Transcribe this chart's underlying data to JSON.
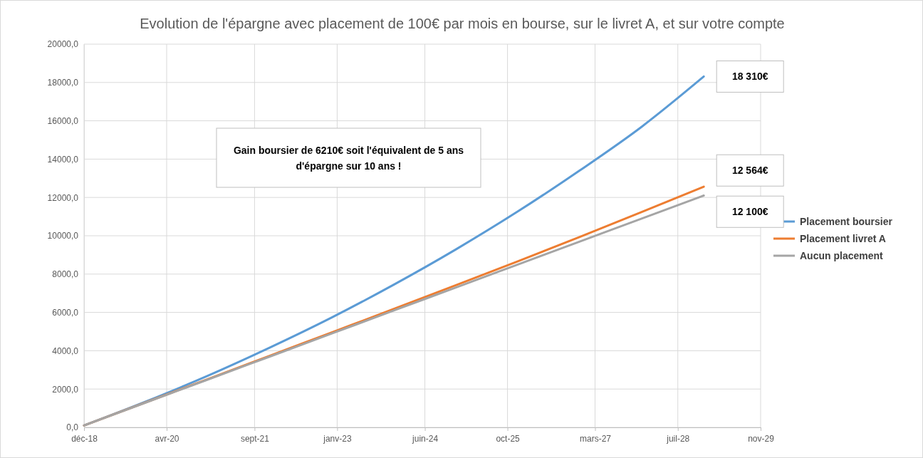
{
  "chart_data": {
    "type": "line",
    "title": "Evolution de l'épargne avec placement de 100€ par mois en bourse, sur le livret A, et sur votre compte",
    "x": [
      "2018-12",
      "2019-12",
      "2020-12",
      "2021-12",
      "2022-12",
      "2023-12",
      "2024-12",
      "2025-12",
      "2026-12",
      "2027-12",
      "2028-12"
    ],
    "series": [
      {
        "name": "Placement boursier",
        "color": "#5b9bd5",
        "values": [
          100,
          1350,
          2700,
          4170,
          5740,
          7450,
          9290,
          11270,
          13410,
          15690,
          18310
        ]
      },
      {
        "name": "Placement livret A",
        "color": "#ed7d31",
        "values": [
          100,
          1310,
          2520,
          3740,
          4960,
          6180,
          7420,
          8670,
          9940,
          11240,
          12564
        ]
      },
      {
        "name": "Aucun placement",
        "color": "#a5a5a5",
        "values": [
          100,
          1300,
          2500,
          3700,
          4900,
          6100,
          7300,
          8500,
          9700,
          10900,
          12100
        ]
      }
    ],
    "xlim": [
      "2018-12",
      "2029-11"
    ],
    "xticks": [
      {
        "value": "2018-12",
        "label": "déc-18"
      },
      {
        "value": "2020-04",
        "label": "avr-20"
      },
      {
        "value": "2021-09",
        "label": "sept-21"
      },
      {
        "value": "2023-01",
        "label": "janv-23"
      },
      {
        "value": "2024-06",
        "label": "juin-24"
      },
      {
        "value": "2025-10",
        "label": "oct-25"
      },
      {
        "value": "2027-03",
        "label": "mars-27"
      },
      {
        "value": "2028-07",
        "label": "juil-28"
      },
      {
        "value": "2029-11",
        "label": "nov-29"
      }
    ],
    "ylim": [
      0,
      20000
    ],
    "yticks": [
      {
        "value": 0,
        "label": "0,0"
      },
      {
        "value": 2000,
        "label": "2000,0"
      },
      {
        "value": 4000,
        "label": "4000,0"
      },
      {
        "value": 6000,
        "label": "6000,0"
      },
      {
        "value": 8000,
        "label": "8000,0"
      },
      {
        "value": 10000,
        "label": "10000,0"
      },
      {
        "value": 12000,
        "label": "12000,0"
      },
      {
        "value": 14000,
        "label": "14000,0"
      },
      {
        "value": 16000,
        "label": "16000,0"
      },
      {
        "value": 18000,
        "label": "18000,0"
      },
      {
        "value": 20000,
        "label": "20000,0"
      }
    ],
    "grid": true,
    "legend": "right",
    "marker": "none",
    "line_style": "solid",
    "annotations": [
      "Gain boursier de 6210€ soit l'équivalent de 5 ans d'épargne sur 10 ans !",
      {
        "text": "18 310€",
        "x": "2028-12",
        "y": 18310
      },
      {
        "text": "12 564€",
        "x": "2028-12",
        "y": 12564
      },
      {
        "text": "12 100€",
        "x": "2028-12",
        "y": 12100
      }
    ]
  }
}
